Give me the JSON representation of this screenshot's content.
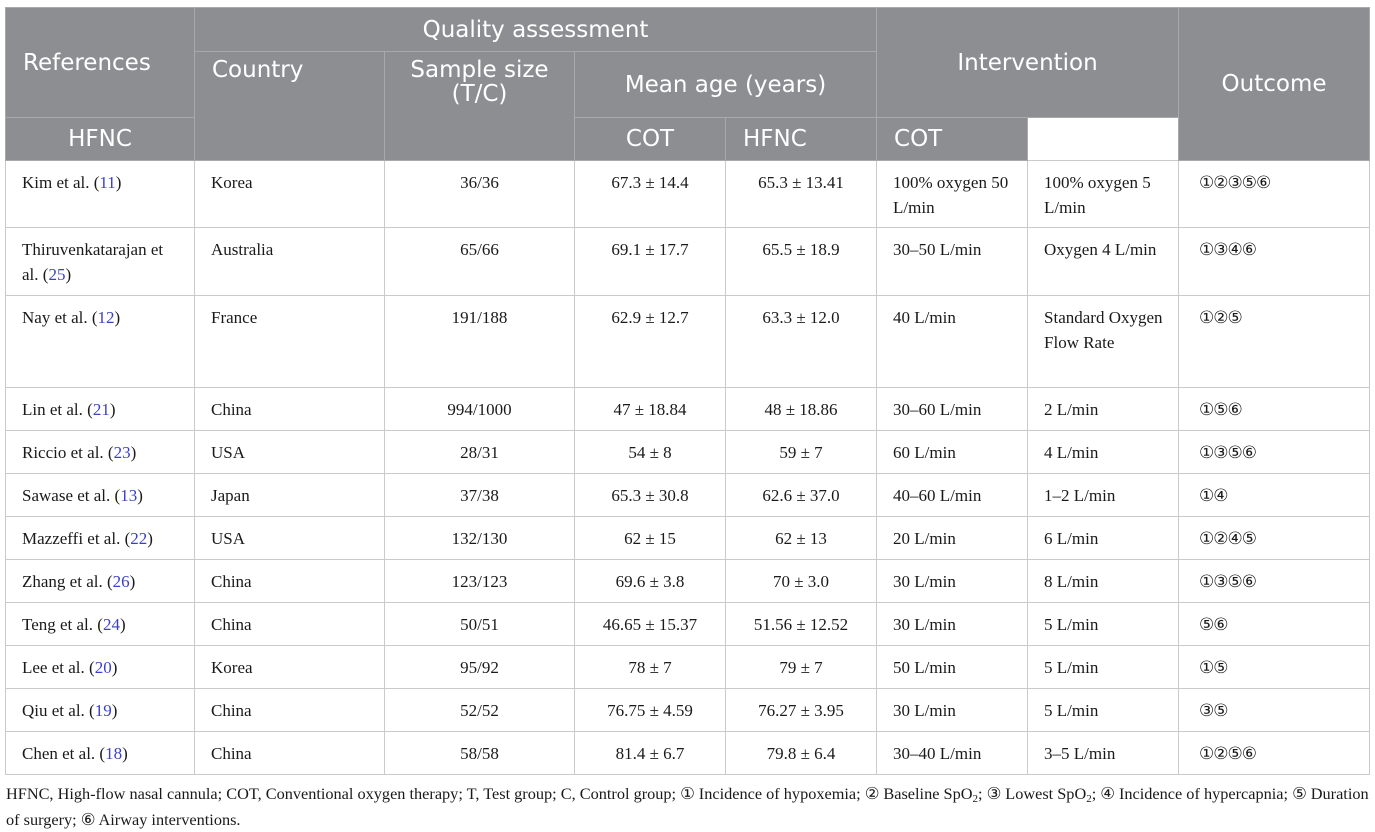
{
  "header": {
    "references": "References",
    "quality_assessment": "Quality assessment",
    "country": "Country",
    "sample_size": "Sample size (T/C)",
    "mean_age": "Mean age (years)",
    "intervention": "Intervention",
    "outcome": "Outcome",
    "hfnc": "HFNC",
    "cot": "COT"
  },
  "rows": [
    {
      "author": "Kim et al. (",
      "ref": "11",
      "close": ")",
      "country": "Korea",
      "sample": "36/36",
      "age_hfnc": "67.3 ± 14.4",
      "age_cot": "65.3 ± 13.41",
      "int_hfnc": "100% oxygen 50 L/min",
      "int_cot": "100% oxygen 5 L/min",
      "outcome": "①②③⑤⑥"
    },
    {
      "author": "Thiruvenkatarajan et al. (",
      "ref": "25",
      "close": ")",
      "country": "Australia",
      "sample": "65/66",
      "age_hfnc": "69.1 ± 17.7",
      "age_cot": "65.5 ± 18.9",
      "int_hfnc": "30–50 L/min",
      "int_cot": "Oxygen 4 L/min",
      "outcome": "①③④⑥"
    },
    {
      "author": "Nay et al. (",
      "ref": "12",
      "close": ")",
      "country": "France",
      "sample": "191/188",
      "age_hfnc": "62.9 ± 12.7",
      "age_cot": "63.3 ± 12.0",
      "int_hfnc": "40 L/min",
      "int_cot": "Standard Oxygen Flow Rate",
      "outcome": "①②⑤"
    },
    {
      "author": "Lin et al. (",
      "ref": "21",
      "close": ")",
      "country": "China",
      "sample": "994/1000",
      "age_hfnc": "47 ± 18.84",
      "age_cot": "48 ± 18.86",
      "int_hfnc": "30–60 L/min",
      "int_cot": "2 L/min",
      "outcome": "①⑤⑥"
    },
    {
      "author": "Riccio et al. (",
      "ref": "23",
      "close": ")",
      "country": "USA",
      "sample": "28/31",
      "age_hfnc": "54 ± 8",
      "age_cot": "59 ± 7",
      "int_hfnc": "60 L/min",
      "int_cot": "4 L/min",
      "outcome": "①③⑤⑥"
    },
    {
      "author": "Sawase et al. (",
      "ref": "13",
      "close": ")",
      "country": "Japan",
      "sample": "37/38",
      "age_hfnc": "65.3 ± 30.8",
      "age_cot": "62.6 ± 37.0",
      "int_hfnc": "40–60 L/min",
      "int_cot": "1–2 L/min",
      "outcome": "①④"
    },
    {
      "author": "Mazzeffi et al. (",
      "ref": "22",
      "close": ")",
      "country": "USA",
      "sample": "132/130",
      "age_hfnc": "62 ± 15",
      "age_cot": "62 ± 13",
      "int_hfnc": "20 L/min",
      "int_cot": "6 L/min",
      "outcome": "①②④⑤"
    },
    {
      "author": "Zhang et al. (",
      "ref": "26",
      "close": ")",
      "country": "China",
      "sample": "123/123",
      "age_hfnc": "69.6 ± 3.8",
      "age_cot": "70 ± 3.0",
      "int_hfnc": "30 L/min",
      "int_cot": "8 L/min",
      "outcome": "①③⑤⑥"
    },
    {
      "author": "Teng et al. (",
      "ref": "24",
      "close": ")",
      "country": "China",
      "sample": "50/51",
      "age_hfnc": "46.65 ± 15.37",
      "age_cot": "51.56 ± 12.52",
      "int_hfnc": "30 L/min",
      "int_cot": "5 L/min",
      "outcome": "⑤⑥"
    },
    {
      "author": "Lee et al. (",
      "ref": "20",
      "close": ")",
      "country": "Korea",
      "sample": "95/92",
      "age_hfnc": "78 ± 7",
      "age_cot": "79 ± 7",
      "int_hfnc": "50 L/min",
      "int_cot": "5 L/min",
      "outcome": "①⑤"
    },
    {
      "author": "Qiu et al. (",
      "ref": "19",
      "close": ")",
      "country": "China",
      "sample": "52/52",
      "age_hfnc": "76.75 ± 4.59",
      "age_cot": "76.27 ± 3.95",
      "int_hfnc": "30 L/min",
      "int_cot": "5 L/min",
      "outcome": "③⑤"
    },
    {
      "author": "Chen et al. (",
      "ref": "18",
      "close": ")",
      "country": "China",
      "sample": "58/58",
      "age_hfnc": "81.4 ± 6.7",
      "age_cot": "79.8 ± 6.4",
      "int_hfnc": "30–40 L/min",
      "int_cot": "3–5 L/min",
      "outcome": "①②⑤⑥"
    }
  ],
  "footnote": {
    "part1": "HFNC, High-flow nasal cannula; COT, Conventional oxygen therapy; T, Test group; C, Control group; ① Incidence of hypoxemia; ② Baseline SpO",
    "sub1": "2",
    "part2": "; ③ Lowest SpO",
    "sub2": "2",
    "part3": "; ④ Incidence of hypercapnia; ⑤ Duration of surgery; ⑥ Airway interventions."
  }
}
